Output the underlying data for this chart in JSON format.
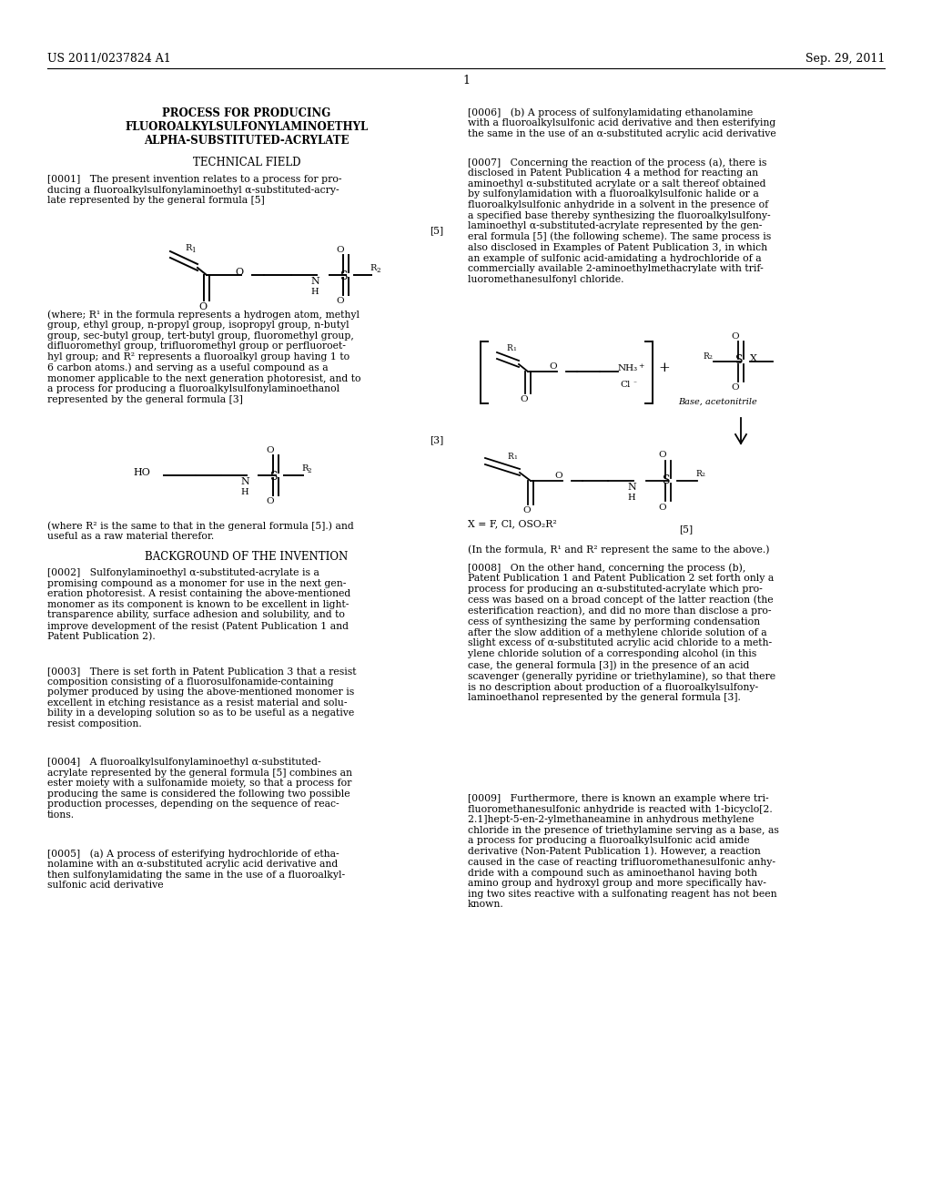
{
  "bg_color": "#ffffff",
  "header_left": "US 2011/0237824 A1",
  "header_right": "Sep. 29, 2011",
  "page_number": "1",
  "fig_width": 10.24,
  "fig_height": 13.2,
  "dpi": 100
}
